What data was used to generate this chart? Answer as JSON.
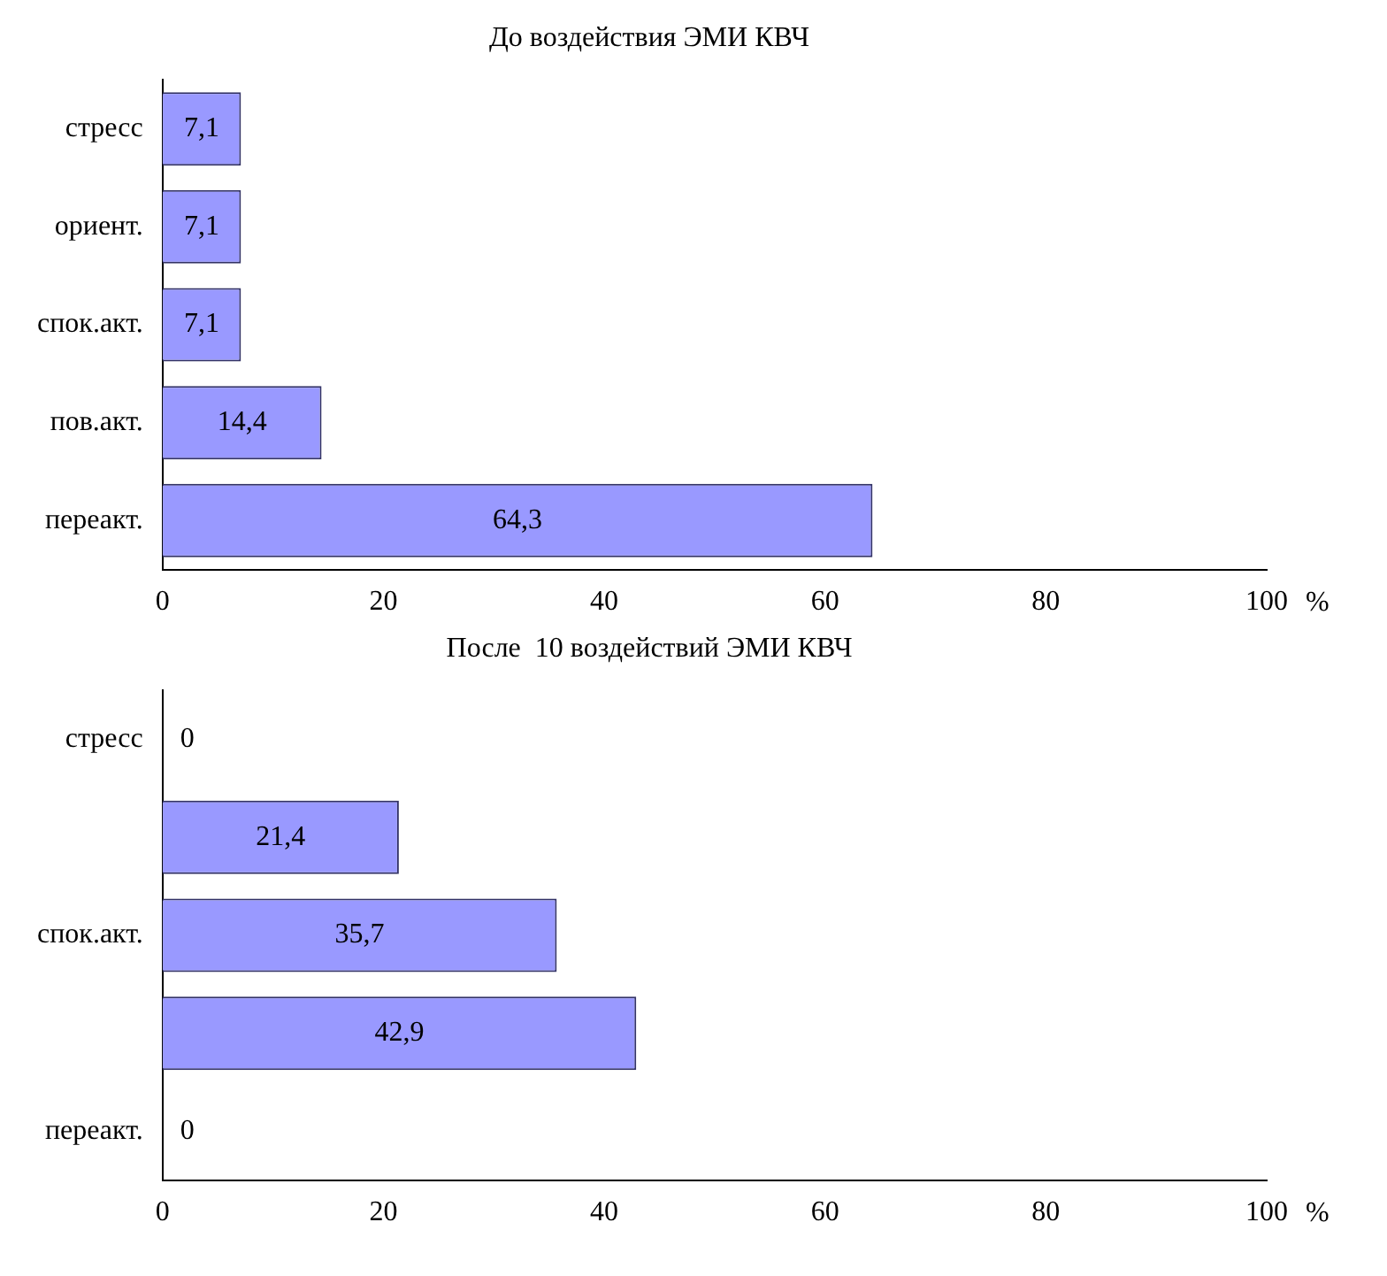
{
  "chart_data": [
    {
      "type": "bar",
      "orientation": "horizontal",
      "title": "До воздействия ЭМИ КВЧ",
      "xlabel": "%",
      "categories": [
        "стресс",
        "ориент.",
        "спок.акт.",
        "пов.акт.",
        "переакт."
      ],
      "values": [
        7.1,
        7.1,
        7.1,
        14.4,
        64.3
      ],
      "value_labels": [
        "7,1",
        "7,1",
        "7,1",
        "14,4",
        "64,3"
      ],
      "color": "#9999ff",
      "xlim": [
        0,
        100
      ],
      "xticks": [
        0,
        20,
        40,
        60,
        80,
        100
      ],
      "grid": false,
      "legend": false
    },
    {
      "type": "bar",
      "orientation": "horizontal",
      "title": "После  10 воздействий ЭМИ КВЧ",
      "xlabel": "%",
      "categories": [
        "стресс",
        null,
        "спок.акт.",
        null,
        "переакт."
      ],
      "values": [
        0,
        21.4,
        35.7,
        42.9,
        0
      ],
      "value_labels": [
        "0",
        "21,4",
        "35,7",
        "42,9",
        "0"
      ],
      "color": "#9999ff",
      "xlim": [
        0,
        100
      ],
      "xticks": [
        0,
        20,
        40,
        60,
        80,
        100
      ],
      "grid": false,
      "legend": false
    }
  ]
}
